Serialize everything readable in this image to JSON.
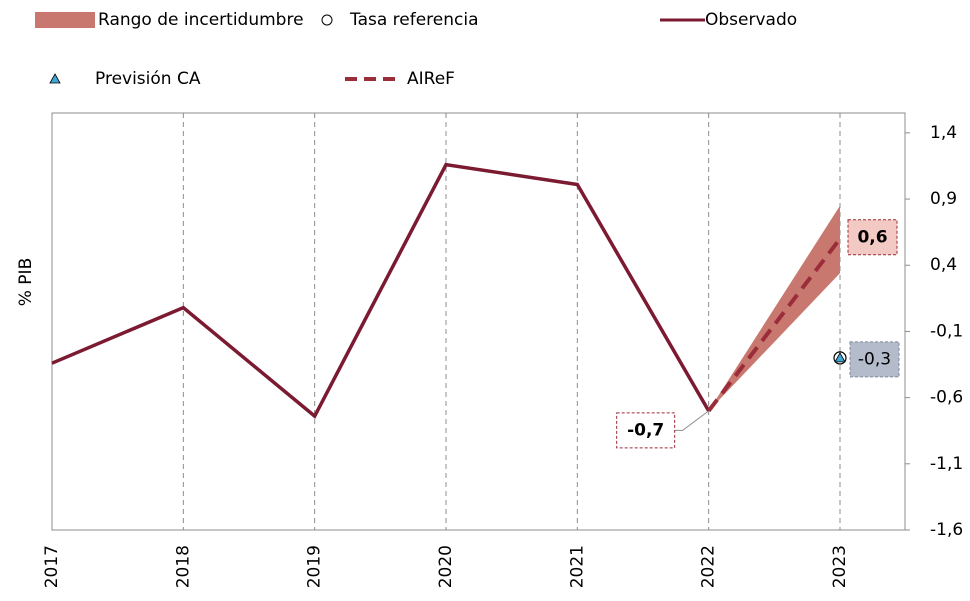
{
  "chart_data": {
    "type": "line",
    "y_label": "% PIB",
    "categories": [
      "2017",
      "2018",
      "2019",
      "2020",
      "2021",
      "2022",
      "2023"
    ],
    "ylim": [
      -1.6,
      1.55
    ],
    "yticks": [
      {
        "value": -1.6,
        "label": "-1,6"
      },
      {
        "value": -1.1,
        "label": "-1,1"
      },
      {
        "value": -0.6,
        "label": "-0,6"
      },
      {
        "value": -0.1,
        "label": "-0,1"
      },
      {
        "value": 0.4,
        "label": "0,4"
      },
      {
        "value": 0.9,
        "label": "0,9"
      },
      {
        "value": 1.4,
        "label": "1,4"
      }
    ],
    "grid": true,
    "y_axis_side": "right",
    "series": [
      {
        "name": "Rango de incertidumbre",
        "kind": "band",
        "color": "#c9786f",
        "lower": [
          null,
          null,
          null,
          null,
          null,
          -0.7,
          0.34
        ],
        "upper": [
          null,
          null,
          null,
          null,
          null,
          -0.7,
          0.85
        ]
      },
      {
        "name": "Tasa referencia",
        "kind": "marker",
        "marker": "circle",
        "color": "#ffffff",
        "values": [
          null,
          null,
          null,
          null,
          null,
          null,
          -0.3
        ]
      },
      {
        "name": "Observado",
        "kind": "line",
        "color": "#7b1a30",
        "values": [
          -0.34,
          0.08,
          -0.74,
          1.16,
          1.01,
          -0.7,
          null
        ],
        "value_labels": [
          null,
          null,
          null,
          null,
          null,
          "-0,7",
          null
        ]
      },
      {
        "name": "Previsión CA",
        "kind": "marker",
        "marker": "triangle",
        "color": "#3fa7d6",
        "values": [
          null,
          null,
          null,
          null,
          null,
          null,
          -0.3
        ],
        "value_labels": [
          null,
          null,
          null,
          null,
          null,
          null,
          "-0,3"
        ]
      },
      {
        "name": "AIReF",
        "kind": "dashed",
        "color": "#9b2c3a",
        "values": [
          null,
          null,
          null,
          null,
          null,
          -0.7,
          0.6
        ],
        "value_labels": [
          null,
          null,
          null,
          null,
          null,
          null,
          "0,6"
        ]
      }
    ]
  }
}
